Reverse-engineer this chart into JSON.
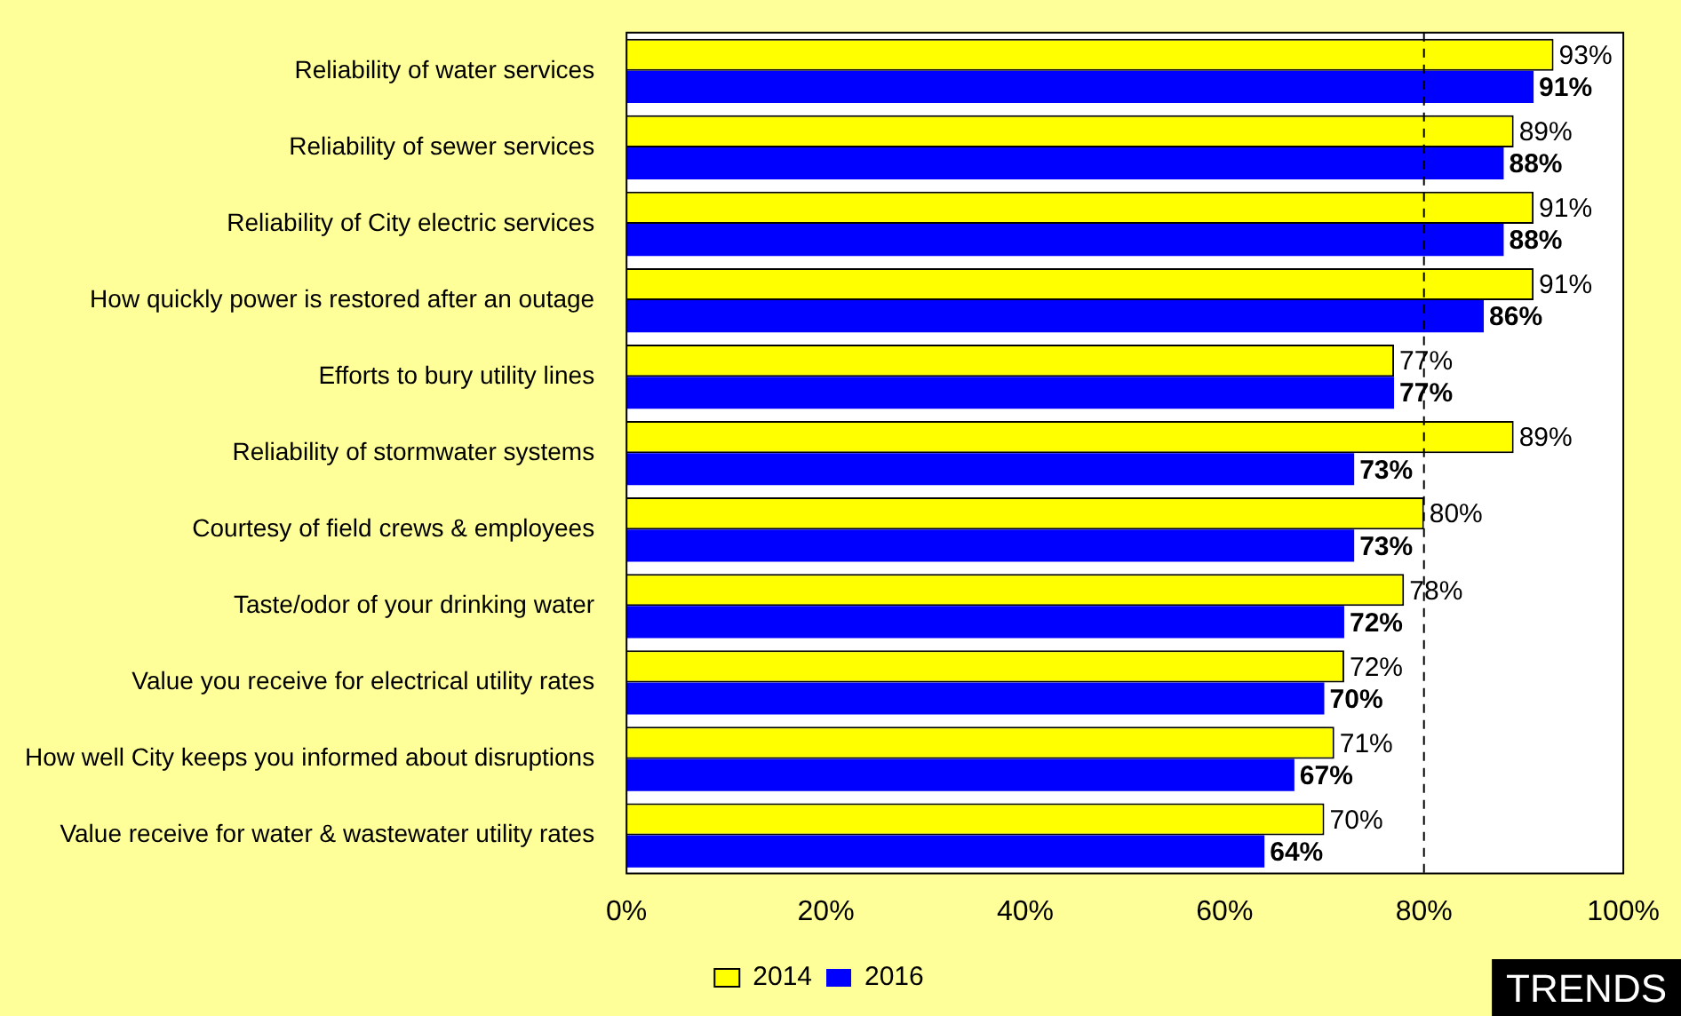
{
  "chart_data": {
    "type": "bar",
    "orientation": "horizontal",
    "categories": [
      "Reliability of water services",
      "Reliability of sewer services",
      "Reliability of City electric services",
      "How quickly power is restored after an outage",
      "Efforts to bury utility lines",
      "Reliability of stormwater systems",
      "Courtesy of field crews & employees",
      "Taste/odor of your drinking water",
      "Value you receive for electrical utility rates",
      "How well City keeps you informed about disruptions",
      "Value receive for water & wastewater utility rates"
    ],
    "series": [
      {
        "name": "2014",
        "color": "#ffff00",
        "values": [
          93,
          89,
          91,
          91,
          77,
          89,
          80,
          78,
          72,
          71,
          70
        ],
        "value_labels": [
          "93%",
          "89%",
          "91%",
          "91%",
          "77%",
          "89%",
          "80%",
          "78%",
          "72%",
          "71%",
          "70%"
        ]
      },
      {
        "name": "2016",
        "color": "#0000ff",
        "values": [
          91,
          88,
          88,
          86,
          77,
          73,
          73,
          72,
          70,
          67,
          64
        ],
        "value_labels": [
          "91%",
          "88%",
          "88%",
          "86%",
          "77%",
          "73%",
          "73%",
          "72%",
          "70%",
          "67%",
          "64%"
        ]
      }
    ],
    "xlim": [
      0,
      100
    ],
    "xticks": [
      {
        "value": 0,
        "label": "0%"
      },
      {
        "value": 20,
        "label": "20%"
      },
      {
        "value": 40,
        "label": "40%"
      },
      {
        "value": 60,
        "label": "60%"
      },
      {
        "value": 80,
        "label": "80%"
      },
      {
        "value": 100,
        "label": "100%"
      }
    ],
    "ref_lines": [
      {
        "axis": "x",
        "value": 80,
        "label": null,
        "line_style": "dashed",
        "color": "#000000"
      }
    ],
    "grid": false,
    "legend": "bottom",
    "annotations": [
      "TRENDS"
    ]
  }
}
